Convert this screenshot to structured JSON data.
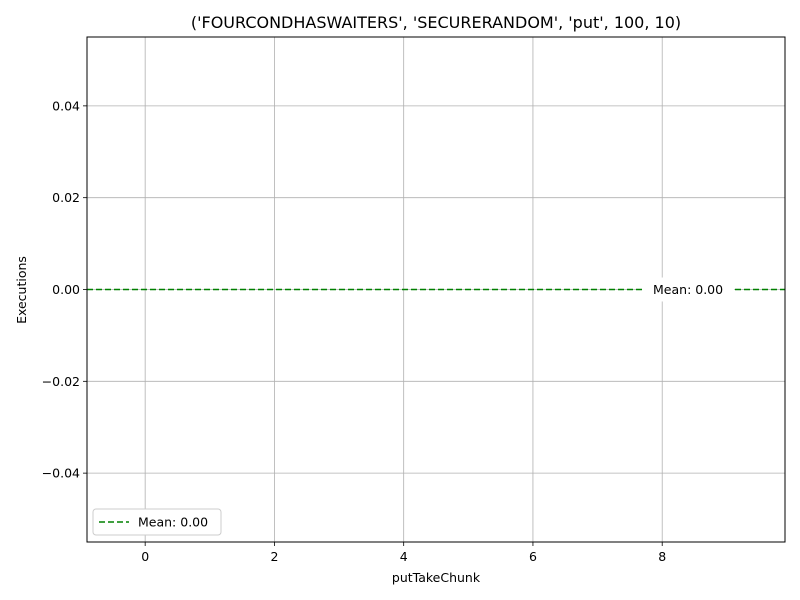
{
  "chart_data": {
    "type": "line",
    "title": "('FOURCONDHASWAITERS', 'SECURERANDOM', 'put', 100, 10)",
    "xlabel": "putTakeChunk",
    "ylabel": "Executions",
    "xlim": [
      -0.9,
      9.9
    ],
    "ylim": [
      -0.055,
      0.055
    ],
    "x_ticks": [
      0,
      2,
      4,
      6,
      8
    ],
    "x_tick_labels": [
      "0",
      "2",
      "4",
      "6",
      "8"
    ],
    "y_ticks": [
      -0.04,
      -0.02,
      0.0,
      0.02,
      0.04
    ],
    "y_tick_labels": [
      "−0.04",
      "−0.02",
      "0.00",
      "0.02",
      "0.04"
    ],
    "grid": true,
    "series": [
      {
        "name": "Mean: 0.00",
        "style": "dashed",
        "color": "#008000",
        "x": [
          -0.9,
          9.9
        ],
        "y": [
          0.0,
          0.0
        ]
      }
    ],
    "legend": {
      "position": "lower-left",
      "entries": [
        "Mean: 0.00"
      ]
    },
    "annotations": [
      {
        "text": "Mean: 0.00",
        "x": 8.4,
        "y": 0.0
      }
    ]
  }
}
